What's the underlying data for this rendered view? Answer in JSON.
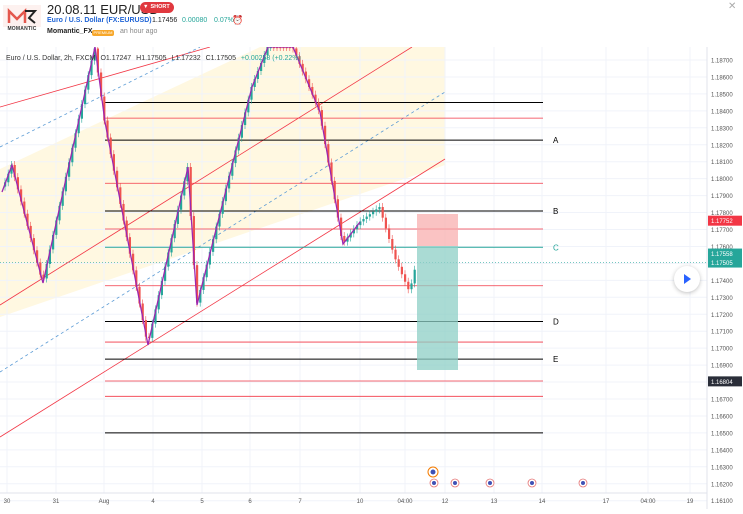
{
  "post": {
    "title": "20.08.11 EUR/USD",
    "direction_badge": "SHORT",
    "symbol_link": "Euro / U.S. Dollar (FX:EURUSD)",
    "price": "1.17456",
    "change": "0.00080",
    "change_pct": "0.07%",
    "author": "Momantic_FX",
    "author_badge": "PREMIUM",
    "time_ago": "an hour ago",
    "logo_text": "MOMANTIC"
  },
  "legend": {
    "symbol": "Euro / U.S. Dollar, 2h, FXCM",
    "open": "O1.17247",
    "high": "H1.17505",
    "low": "L1.17232",
    "close": "C1.17505",
    "change": "+0.00258 (+0.22%)"
  },
  "chart_data": {
    "type": "candlestick",
    "y_range": [
      1.16,
      1.188
    ],
    "y_ticks": [
      "1.18700",
      "1.18600",
      "1.18500",
      "1.18400",
      "1.18300",
      "1.18200",
      "1.18100",
      "1.18000",
      "1.17900",
      "1.17800",
      "1.17700",
      "1.17600",
      "1.17500",
      "1.17400",
      "1.17300",
      "1.17200",
      "1.17100",
      "1.17000",
      "1.16900",
      "1.16800",
      "1.16700",
      "1.16600",
      "1.16500",
      "1.16400",
      "1.16300",
      "1.16200",
      "1.16100"
    ],
    "x_ticks": [
      "30",
      "31",
      "Aug",
      "4",
      "5",
      "6",
      "7",
      "10",
      "04:00",
      "12",
      "13",
      "14",
      "17",
      "04:00",
      "19"
    ],
    "price_tags": [
      {
        "label": "1.17752",
        "value": 1.17752,
        "color": "#f23645"
      },
      {
        "label": "1.17558",
        "value": 1.17558,
        "color": "#26a69a"
      },
      {
        "label": "1.17505",
        "value": 1.17505,
        "color": "#26a69a"
      },
      {
        "label": "1.16804",
        "value": 1.16804,
        "color": "#2a2e39"
      }
    ],
    "levels": [
      {
        "label": "A",
        "value": 1.18227,
        "color": "#000000"
      },
      {
        "label": "B",
        "value": 1.17809,
        "color": "#000000"
      },
      {
        "label": "C",
        "value": 1.17595,
        "color": "#26a69a"
      },
      {
        "label": "D",
        "value": 1.17157,
        "color": "#000000"
      },
      {
        "label": "E",
        "value": 1.16935,
        "color": "#000000"
      }
    ],
    "position": {
      "type": "short",
      "entry": 1.17558,
      "stop": 1.17752,
      "target": 1.16804
    },
    "colors": {
      "up": "#26a69a",
      "down": "#ef5350",
      "channel": "#f23645",
      "zigzag": "#9c27b0",
      "channel_fill": "#fff8e1"
    },
    "events_count": 5
  }
}
